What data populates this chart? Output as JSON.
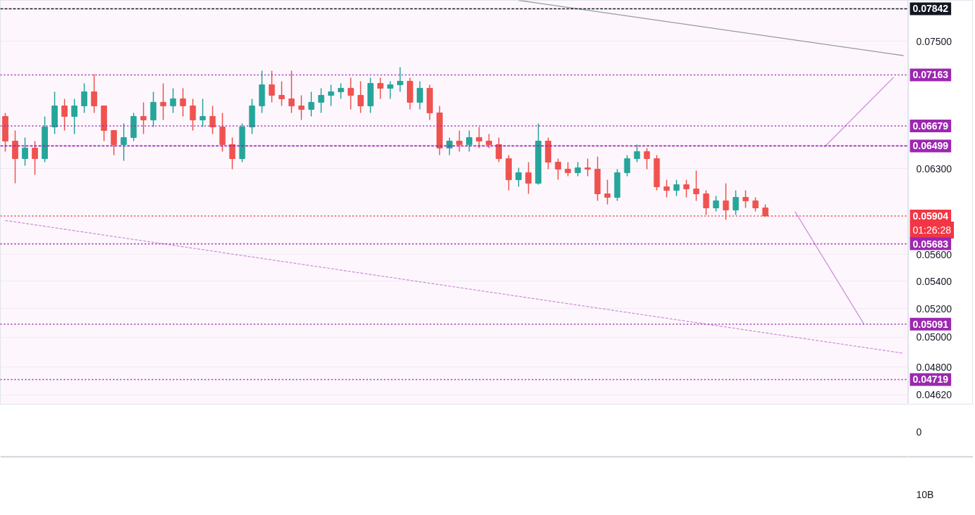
{
  "chart_data": {
    "type": "candlestick",
    "categories": [
      null,
      null,
      null,
      null,
      null,
      null,
      null,
      null,
      null,
      null,
      null,
      null,
      null,
      null,
      null,
      null,
      null,
      null,
      null,
      null,
      null,
      null,
      null,
      null,
      null,
      null,
      null,
      null,
      null,
      null,
      null,
      null,
      null,
      null,
      null,
      null,
      null,
      null,
      null,
      null,
      null,
      null,
      null,
      null,
      null,
      null,
      null,
      null,
      null,
      null,
      null,
      null,
      null,
      null,
      null,
      null,
      null,
      null,
      null,
      null,
      null,
      null,
      null,
      null,
      null,
      null,
      null,
      null,
      null,
      null,
      null,
      null,
      null,
      null,
      null,
      null,
      null,
      null,
      null,
      null,
      null,
      null,
      null,
      null,
      null,
      null,
      null,
      null,
      null,
      null,
      null,
      null
    ],
    "ohlc": [
      [
        0.06767,
        0.068,
        0.06449,
        0.06542
      ],
      [
        0.06542,
        0.06638,
        0.06175,
        0.06387
      ],
      [
        0.06387,
        0.06574,
        0.06325,
        0.0648
      ],
      [
        0.0648,
        0.06542,
        0.06247,
        0.06387
      ],
      [
        0.06387,
        0.06767,
        0.06356,
        0.0667
      ],
      [
        0.0667,
        0.06999,
        0.06606,
        0.06865
      ],
      [
        0.06865,
        0.06932,
        0.06638,
        0.06767
      ],
      [
        0.06767,
        0.06932,
        0.06606,
        0.06865
      ],
      [
        0.06865,
        0.0708,
        0.068,
        0.06999
      ],
      [
        0.06999,
        0.0717,
        0.068,
        0.06865
      ],
      [
        0.06865,
        0.06865,
        0.06542,
        0.06638
      ],
      [
        0.06638,
        0.06638,
        0.06418,
        0.06511
      ],
      [
        0.06511,
        0.06702,
        0.06368,
        0.06574
      ],
      [
        0.06574,
        0.068,
        0.06542,
        0.06767
      ],
      [
        0.06767,
        0.06899,
        0.06606,
        0.06734
      ],
      [
        0.06734,
        0.06999,
        0.0667,
        0.06899
      ],
      [
        0.06899,
        0.0708,
        0.06734,
        0.06865
      ],
      [
        0.06865,
        0.07033,
        0.068,
        0.06932
      ],
      [
        0.06932,
        0.07033,
        0.06767,
        0.06865
      ],
      [
        0.06865,
        0.06932,
        0.06638,
        0.06734
      ],
      [
        0.06734,
        0.06932,
        0.0667,
        0.06767
      ],
      [
        0.06767,
        0.06865,
        0.06606,
        0.0667
      ],
      [
        0.0667,
        0.068,
        0.06449,
        0.06511
      ],
      [
        0.06511,
        0.06574,
        0.06295,
        0.06387
      ],
      [
        0.06387,
        0.06702,
        0.06356,
        0.0667
      ],
      [
        0.0667,
        0.06932,
        0.06606,
        0.06865
      ],
      [
        0.06865,
        0.07204,
        0.068,
        0.07067
      ],
      [
        0.07067,
        0.07204,
        0.06899,
        0.06965
      ],
      [
        0.06965,
        0.07101,
        0.06865,
        0.06932
      ],
      [
        0.06932,
        0.07204,
        0.068,
        0.06865
      ],
      [
        0.06865,
        0.06965,
        0.06734,
        0.06832
      ],
      [
        0.06832,
        0.06999,
        0.06767,
        0.06899
      ],
      [
        0.06899,
        0.07033,
        0.068,
        0.06965
      ],
      [
        0.06965,
        0.07067,
        0.06865,
        0.06999
      ],
      [
        0.06999,
        0.0708,
        0.06932,
        0.07033
      ],
      [
        0.07033,
        0.07135,
        0.06832,
        0.06965
      ],
      [
        0.06965,
        0.07101,
        0.068,
        0.06865
      ],
      [
        0.06865,
        0.07135,
        0.068,
        0.0708
      ],
      [
        0.0708,
        0.07135,
        0.06932,
        0.07033
      ],
      [
        0.07033,
        0.07101,
        0.06932,
        0.07067
      ],
      [
        0.07067,
        0.07239,
        0.06999,
        0.07101
      ],
      [
        0.07101,
        0.07135,
        0.06832,
        0.06899
      ],
      [
        0.06899,
        0.07101,
        0.06832,
        0.07033
      ],
      [
        0.07033,
        0.07067,
        0.06734,
        0.068
      ],
      [
        0.068,
        0.06865,
        0.06418,
        0.0648
      ],
      [
        0.0648,
        0.06574,
        0.06418,
        0.06542
      ],
      [
        0.06542,
        0.06638,
        0.06449,
        0.06511
      ],
      [
        0.06511,
        0.06638,
        0.06449,
        0.06574
      ],
      [
        0.06574,
        0.0667,
        0.0648,
        0.06542
      ],
      [
        0.06542,
        0.06606,
        0.0648,
        0.06511
      ],
      [
        0.06511,
        0.06574,
        0.06356,
        0.06387
      ],
      [
        0.06387,
        0.06418,
        0.06115,
        0.06205
      ],
      [
        0.06205,
        0.06307,
        0.06145,
        0.06265
      ],
      [
        0.06265,
        0.06356,
        0.06086,
        0.06175
      ],
      [
        0.06175,
        0.06702,
        0.06163,
        0.06542
      ],
      [
        0.06542,
        0.06574,
        0.06295,
        0.06356
      ],
      [
        0.06356,
        0.06387,
        0.06205,
        0.06295
      ],
      [
        0.06295,
        0.06356,
        0.06235,
        0.06265
      ],
      [
        0.06265,
        0.06356,
        0.06235,
        0.06307
      ],
      [
        0.06307,
        0.06387,
        0.06235,
        0.06295
      ],
      [
        0.06295,
        0.06405,
        0.06028,
        0.06086
      ],
      [
        0.06086,
        0.06205,
        0.05999,
        0.06057
      ],
      [
        0.06057,
        0.06295,
        0.06028,
        0.06265
      ],
      [
        0.06265,
        0.06418,
        0.06235,
        0.06387
      ],
      [
        0.06387,
        0.06511,
        0.06356,
        0.06449
      ],
      [
        0.06449,
        0.0648,
        0.06295,
        0.06387
      ],
      [
        0.06387,
        0.06418,
        0.06115,
        0.06145
      ],
      [
        0.06145,
        0.06205,
        0.06057,
        0.06115
      ],
      [
        0.06115,
        0.06205,
        0.06068,
        0.06163
      ],
      [
        0.06163,
        0.06205,
        0.06057,
        0.06127
      ],
      [
        0.06127,
        0.06283,
        0.06028,
        0.06086
      ],
      [
        0.06086,
        0.06115,
        0.05913,
        0.0597
      ],
      [
        0.0597,
        0.06068,
        0.05941,
        0.06028
      ],
      [
        0.06028,
        0.06175,
        0.05873,
        0.05953
      ],
      [
        0.05953,
        0.06115,
        0.05913,
        0.06057
      ],
      [
        0.06057,
        0.06115,
        0.0597,
        0.06028
      ],
      [
        0.06028,
        0.06057,
        0.05941,
        0.0597
      ],
      [
        0.0597,
        0.05999,
        0.05901,
        0.05904
      ],
      null,
      null,
      null,
      null,
      null,
      null,
      null,
      null,
      null,
      null,
      null,
      null,
      null,
      null
    ],
    "series": [
      {
        "type": "line",
        "values": [
          null,
          null,
          null,
          null,
          null,
          null,
          null,
          null,
          null,
          null,
          null,
          null,
          null,
          null,
          null,
          null,
          null,
          null,
          null,
          null,
          null,
          null,
          null,
          null,
          null,
          null,
          null,
          null,
          null,
          null,
          null,
          null,
          null,
          null,
          null,
          null,
          null,
          null,
          null,
          null,
          null,
          null,
          null,
          null,
          null,
          null,
          null,
          null,
          null,
          null,
          null,
          null,
          0.07933,
          null,
          null,
          null,
          null,
          null,
          null,
          null,
          null,
          null,
          null,
          null,
          null,
          null,
          null,
          null,
          null,
          null,
          null,
          null,
          null,
          null,
          null,
          null,
          null,
          null,
          null,
          null,
          null,
          null,
          null,
          null,
          null,
          null,
          null,
          null,
          null,
          null,
          null,
          0.07355
        ],
        "color": "#9598a1",
        "line_style": "solid"
      },
      {
        "type": "line",
        "values": [
          0.05868,
          null,
          null,
          null,
          null,
          null,
          null,
          null,
          null,
          null,
          null,
          null,
          null,
          null,
          null,
          null,
          null,
          null,
          null,
          null,
          null,
          null,
          null,
          null,
          null,
          null,
          null,
          null,
          null,
          null,
          null,
          null,
          null,
          null,
          null,
          null,
          null,
          null,
          null,
          null,
          null,
          null,
          null,
          null,
          null,
          null,
          null,
          null,
          null,
          null,
          null,
          null,
          null,
          null,
          null,
          null,
          null,
          null,
          null,
          null,
          null,
          null,
          null,
          null,
          null,
          null,
          null,
          null,
          null,
          null,
          null,
          null,
          null,
          null,
          null,
          null,
          null,
          null,
          null,
          null,
          null,
          null,
          null,
          null,
          null,
          null,
          null,
          null,
          null,
          null,
          null,
          0.04892
        ],
        "color": "#ce93d8",
        "line_style": "dashed"
      },
      {
        "type": "line",
        "values": [
          null,
          null,
          null,
          null,
          null,
          null,
          null,
          null,
          null,
          null,
          null,
          null,
          null,
          null,
          null,
          null,
          null,
          null,
          null,
          null,
          null,
          null,
          null,
          null,
          null,
          null,
          null,
          null,
          null,
          null,
          null,
          null,
          null,
          null,
          null,
          null,
          null,
          null,
          null,
          null,
          null,
          null,
          null,
          null,
          null,
          null,
          null,
          null,
          null,
          null,
          null,
          null,
          null,
          null,
          null,
          null,
          null,
          null,
          null,
          null,
          null,
          null,
          null,
          null,
          null,
          null,
          null,
          null,
          null,
          null,
          null,
          null,
          null,
          null,
          null,
          null,
          null,
          null,
          null,
          null,
          null,
          null,
          null,
          0.0649,
          null,
          null,
          null,
          null,
          null,
          null,
          0.0714,
          null
        ],
        "color": "#ce93d8",
        "line_style": "solid"
      },
      {
        "type": "line",
        "values": [
          null,
          null,
          null,
          null,
          null,
          null,
          null,
          null,
          null,
          null,
          null,
          null,
          null,
          null,
          null,
          null,
          null,
          null,
          null,
          null,
          null,
          null,
          null,
          null,
          null,
          null,
          null,
          null,
          null,
          null,
          null,
          null,
          null,
          null,
          null,
          null,
          null,
          null,
          null,
          null,
          null,
          null,
          null,
          null,
          null,
          null,
          null,
          null,
          null,
          null,
          null,
          null,
          null,
          null,
          null,
          null,
          null,
          null,
          null,
          null,
          null,
          null,
          null,
          null,
          null,
          null,
          null,
          null,
          null,
          null,
          null,
          null,
          null,
          null,
          null,
          null,
          null,
          null,
          null,
          null,
          0.0594,
          null,
          null,
          null,
          null,
          null,
          null,
          0.0509,
          null,
          null,
          null,
          null
        ],
        "color": "#ce93d8",
        "line_style": "solid"
      }
    ],
    "log": "y",
    "ylim": [
      0.04558,
      0.07933
    ],
    "yticks": [
      {
        "value": 0.075,
        "label": "0.07500"
      },
      {
        "value": 0.063,
        "label": "0.06300"
      },
      {
        "value": 0.056,
        "label": "0.05600"
      },
      {
        "value": 0.054,
        "label": "0.05400"
      },
      {
        "value": 0.052,
        "label": "0.05200"
      },
      {
        "value": 0.05,
        "label": "0.05000"
      },
      {
        "value": 0.048,
        "label": "0.04800"
      },
      {
        "value": 0.0462,
        "label": "0.04620"
      }
    ],
    "tick_labels": "y",
    "grid": "y",
    "ref_lines": [
      {
        "axis": "y",
        "value": 0.07842,
        "label": "0.07842",
        "color": "#131722",
        "line_style": "dashed"
      },
      {
        "axis": "y",
        "value": 0.07163,
        "label": "0.07163",
        "color": "#9c27b0",
        "line_style": "dotted"
      },
      {
        "axis": "y",
        "value": 0.06679,
        "label": "0.06679",
        "color": "#9c27b0",
        "line_style": "dotted"
      },
      {
        "axis": "y",
        "value": 0.06499,
        "label": "0.06499",
        "color": "#9c27b0",
        "line_style": "dashed"
      },
      {
        "axis": "y",
        "value": 0.05904,
        "label": "0.05904",
        "color": "#f23645",
        "line_style": "dotted"
      },
      {
        "axis": "y",
        "value": 0.05683,
        "label": "0.05683",
        "color": "#9c27b0",
        "line_style": "dotted"
      },
      {
        "axis": "y",
        "value": 0.05091,
        "label": "0.05091",
        "color": "#9c27b0",
        "line_style": "dotted"
      },
      {
        "axis": "y",
        "value": 0.04719,
        "label": "0.04719",
        "color": "#9c27b0",
        "line_style": "dotted"
      }
    ],
    "annotations": [
      "01:26:28",
      "0",
      "10B"
    ]
  }
}
